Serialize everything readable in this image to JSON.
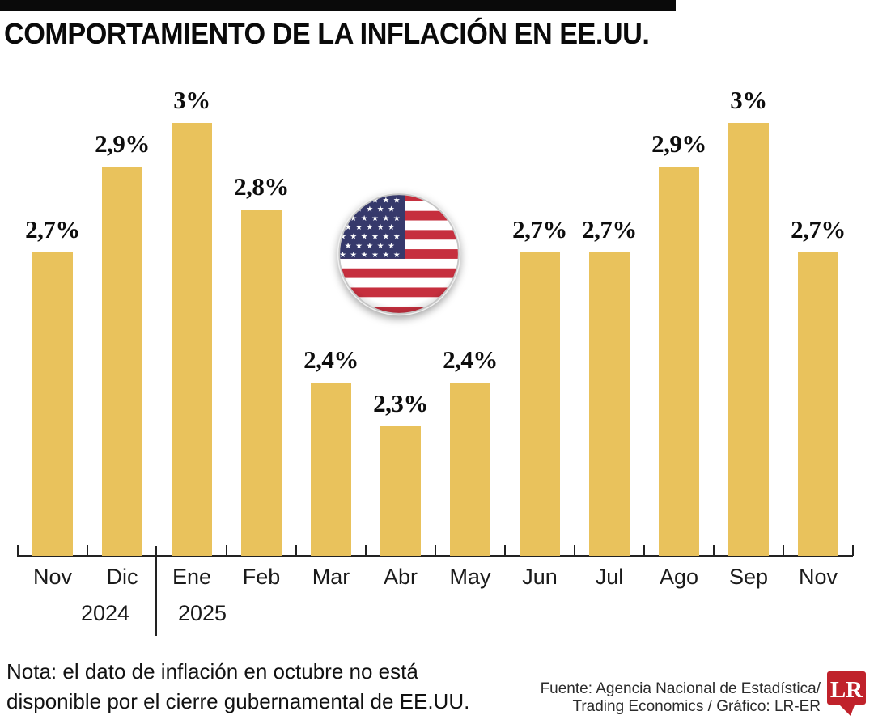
{
  "title": "COMPORTAMIENTO DE LA INFLACIÓN EN EE.UU.",
  "chart_data": {
    "type": "bar",
    "categories": [
      "Nov",
      "Dic",
      "Ene",
      "Feb",
      "Mar",
      "Abr",
      "May",
      "Jun",
      "Jul",
      "Ago",
      "Sep",
      "Nov"
    ],
    "values": [
      2.7,
      2.9,
      3.0,
      2.8,
      2.4,
      2.3,
      2.4,
      2.7,
      2.7,
      2.9,
      3.0,
      2.7
    ],
    "value_labels": [
      "2,7%",
      "2,9%",
      "3%",
      "2,8%",
      "2,4%",
      "2,3%",
      "2,4%",
      "2,7%",
      "2,7%",
      "2,9%",
      "3%",
      "2,7%"
    ],
    "year_labels": [
      "2024",
      "2025"
    ],
    "title": "COMPORTAMIENTO DE LA INFLACIÓN EN EE.UU.",
    "xlabel": "",
    "ylabel": "",
    "ylim": [
      2.0,
      3.05
    ],
    "grid": false,
    "legend": false,
    "bar_color": "#E9C25C",
    "label_format": "comma-decimal-percent"
  },
  "note": {
    "lines": [
      "Nota: el dato de inflación en octubre no está",
      "disponible por el cierre gubernamental de EE.UU."
    ]
  },
  "source": {
    "lines": [
      "Fuente: Agencia Nacional de Estadística/",
      "Trading Economics / Gráfico: LR-ER"
    ]
  },
  "logo": {
    "text": "LR",
    "color": "#C0222B"
  },
  "flag": {
    "red": "#C62F3E",
    "blue": "#36396B",
    "white": "#FFFFFF"
  }
}
